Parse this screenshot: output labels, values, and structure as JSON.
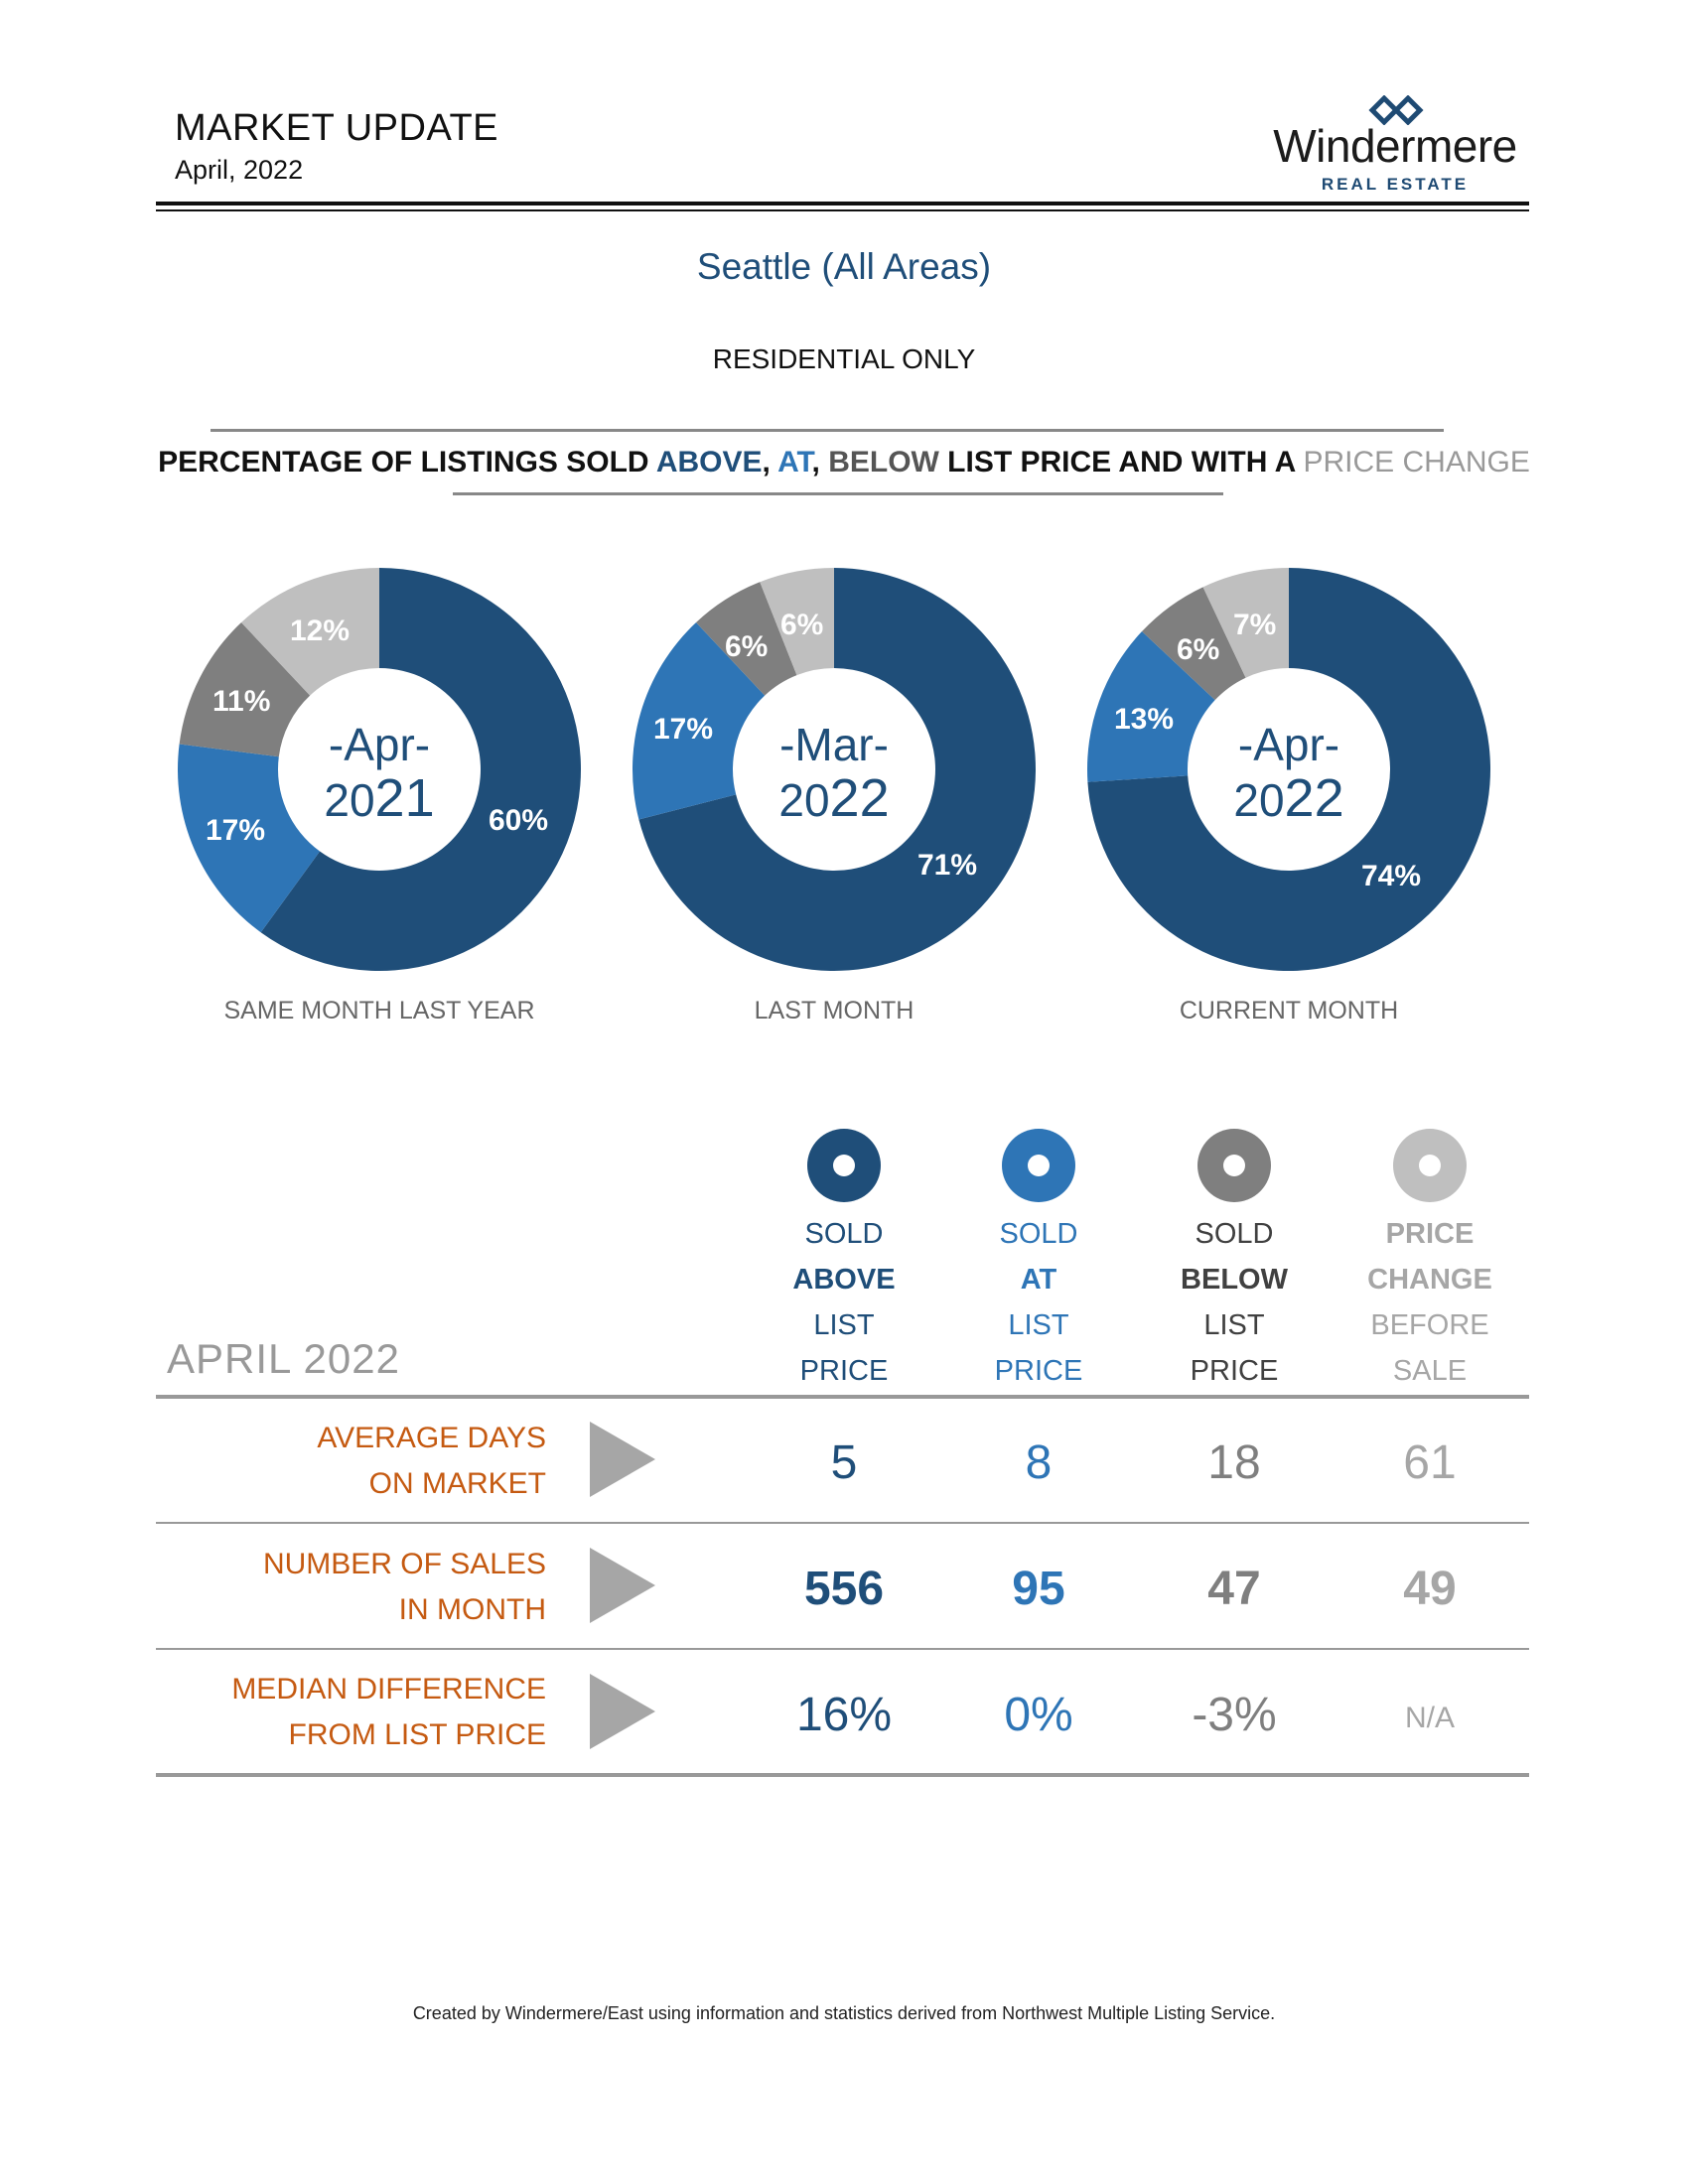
{
  "header": {
    "title": "MARKET UPDATE",
    "date": "April, 2022",
    "logo_word": "Windermere",
    "logo_sub": "REAL ESTATE"
  },
  "area_title": "Seattle (All Areas)",
  "subtitle": "RESIDENTIAL ONLY",
  "heading": {
    "pre": "PERCENTAGE OF LISTINGS SOLD ",
    "above": "ABOVE",
    "comma1": ", ",
    "at": "AT",
    "comma2": ", ",
    "below": "BELOW",
    "mid": " LIST PRICE AND WITH A ",
    "change": "PRICE CHANGE"
  },
  "colors": {
    "above": "#1f4e79",
    "at": "#2e75b6",
    "below": "#7f7f7f",
    "change": "#bfbfbf",
    "row_label": "#c55a11"
  },
  "chart_data": [
    {
      "type": "pie",
      "title": "-Apr- 2021",
      "center_line1": "-Apr-",
      "center_year_a": "20",
      "center_year_b": "21",
      "caption": "SAME MONTH LAST YEAR",
      "categories": [
        "Sold Above List Price",
        "Sold At List Price",
        "Sold Below List Price",
        "Price Change Before Sale"
      ],
      "values": [
        60,
        17,
        11,
        12
      ],
      "labels": [
        "60%",
        "17%",
        "11%",
        "12%"
      ]
    },
    {
      "type": "pie",
      "title": "-Mar- 2022",
      "center_line1": "-Mar-",
      "center_year_a": "20",
      "center_year_b": "22",
      "caption": "LAST MONTH",
      "categories": [
        "Sold Above List Price",
        "Sold At List Price",
        "Sold Below List Price",
        "Price Change Before Sale"
      ],
      "values": [
        71,
        17,
        6,
        6
      ],
      "labels": [
        "71%",
        "17%",
        "6%",
        "6%"
      ]
    },
    {
      "type": "pie",
      "title": "-Apr- 2022",
      "center_line1": "-Apr-",
      "center_year_a": "20",
      "center_year_b": "22",
      "caption": "CURRENT MONTH",
      "categories": [
        "Sold Above List Price",
        "Sold At List Price",
        "Sold Below List Price",
        "Price Change Before Sale"
      ],
      "values": [
        74,
        13,
        6,
        7
      ],
      "labels": [
        "74%",
        "13%",
        "6%",
        "7%"
      ]
    }
  ],
  "table": {
    "section_label": "APRIL 2022",
    "columns": [
      {
        "icon": "above-ring-icon",
        "l1": "SOLD",
        "l2": "ABOVE",
        "l3": "LIST",
        "l4": "PRICE"
      },
      {
        "icon": "at-ring-icon",
        "l1": "SOLD",
        "l2": "AT",
        "l3": "LIST",
        "l4": "PRICE"
      },
      {
        "icon": "below-ring-icon",
        "l1": "SOLD",
        "l2": "BELOW",
        "l3": "LIST",
        "l4": "PRICE"
      },
      {
        "icon": "change-ring-icon",
        "l1": "PRICE",
        "l2": "CHANGE",
        "l3": "BEFORE",
        "l4": "SALE"
      }
    ],
    "rows": [
      {
        "label1": "AVERAGE DAYS",
        "label2": "ON MARKET",
        "values": [
          "5",
          "8",
          "18",
          "61"
        ]
      },
      {
        "label1": "NUMBER OF SALES",
        "label2": "IN MONTH",
        "values": [
          "556",
          "95",
          "47",
          "49"
        ]
      },
      {
        "label1": "MEDIAN DIFFERENCE",
        "label2": "FROM LIST PRICE",
        "values": [
          "16%",
          "0%",
          "-3%",
          "N/A"
        ]
      }
    ]
  },
  "footer": "Created by Windermere/East using information and statistics derived from Northwest Multiple Listing Service."
}
